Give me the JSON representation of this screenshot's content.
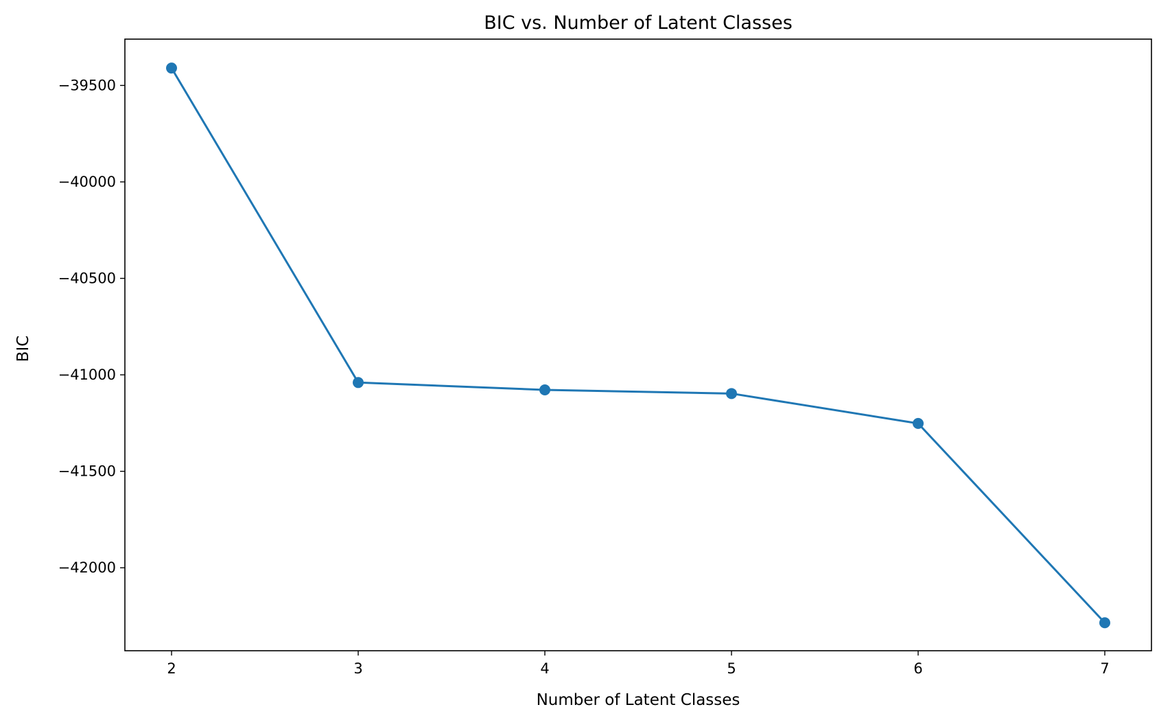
{
  "chart_data": {
    "type": "line",
    "title": "BIC vs. Number of Latent Classes",
    "xlabel": "Number of Latent Classes",
    "ylabel": "BIC",
    "x": [
      2,
      3,
      4,
      5,
      6,
      7
    ],
    "series": [
      {
        "values": [
          -39410,
          -41040,
          -41078,
          -41097,
          -41252,
          -42285
        ],
        "color": "#1f77b4"
      }
    ],
    "xlim": [
      1.75,
      7.25
    ],
    "ylim": [
      -42430,
      -39260
    ],
    "xticks": [
      2,
      3,
      4,
      5,
      6,
      7
    ],
    "yticks": [
      -39500,
      -40000,
      -40500,
      -41000,
      -41500,
      -42000
    ],
    "ytick_labels": [
      "−39500",
      "−40000",
      "−40500",
      "−41000",
      "−41500",
      "−42000"
    ],
    "grid": false,
    "marker": "circle"
  }
}
